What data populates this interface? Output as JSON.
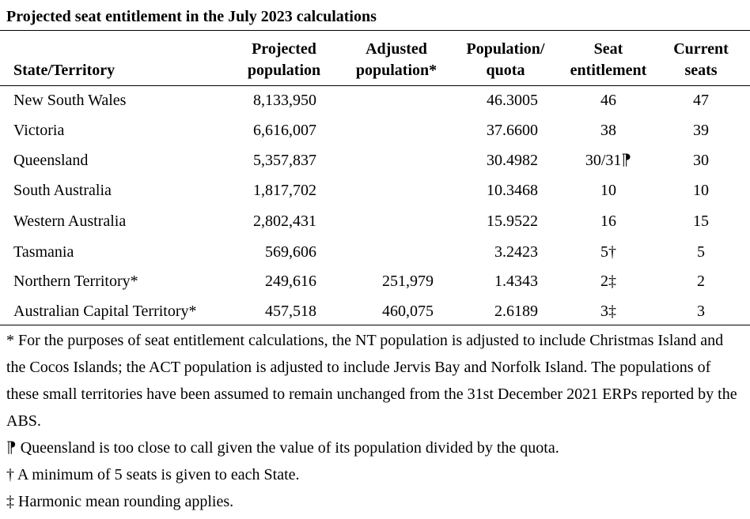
{
  "title": "Projected seat entitlement in the July 2023 calculations",
  "headers": {
    "state": "State/Territory",
    "projected_line1": "Projected",
    "projected_line2": "population",
    "adjusted_line1": "Adjusted",
    "adjusted_line2": "population*",
    "popquota_line1": "Population/",
    "popquota_line2": "quota",
    "seat_line1": "Seat",
    "seat_line2": "entitlement",
    "current_line1": "Current",
    "current_line2": "seats"
  },
  "rows": [
    {
      "state": "New South Wales",
      "projected": "8,133,950",
      "adjusted": "",
      "popquota": "46.3005",
      "entitlement": "46",
      "current": "47"
    },
    {
      "state": "Victoria",
      "projected": "6,616,007",
      "adjusted": "",
      "popquota": "37.6600",
      "entitlement": "38",
      "current": "39"
    },
    {
      "state": "Queensland",
      "projected": "5,357,837",
      "adjusted": "",
      "popquota": "30.4982",
      "entitlement": "30/31⁋",
      "current": "30"
    },
    {
      "state": "South Australia",
      "projected": "1,817,702",
      "adjusted": "",
      "popquota": "10.3468",
      "entitlement": "10",
      "current": "10"
    },
    {
      "state": "Western Australia",
      "projected": "2,802,431",
      "adjusted": "",
      "popquota": "15.9522",
      "entitlement": "16",
      "current": "15"
    },
    {
      "state": "Tasmania",
      "projected": "569,606",
      "adjusted": "",
      "popquota": "3.2423",
      "entitlement": "5†",
      "current": "5"
    },
    {
      "state": "Northern Territory*",
      "projected": "249,616",
      "adjusted": "251,979",
      "popquota": "1.4343",
      "entitlement": "2‡",
      "current": "2"
    },
    {
      "state": "Australian Capital Territory*",
      "projected": "457,518",
      "adjusted": "460,075",
      "popquota": "2.6189",
      "entitlement": "3‡",
      "current": "3"
    }
  ],
  "notes": {
    "asterisk": "* For the purposes of seat entitlement calculations, the NT population is adjusted to include Christmas Island and the Cocos Islands; the ACT population is adjusted to include Jervis Bay and Norfolk Island. The populations of these small territories have been assumed to remain unchanged from the 31st December 2021 ERPs reported by the ABS.",
    "pilcrow": "⁋ Queensland is too close to call given the value of its population divided by the quota.",
    "dagger": "† A minimum of 5 seats is given to each State.",
    "double_dagger": "‡ Harmonic mean rounding applies."
  }
}
